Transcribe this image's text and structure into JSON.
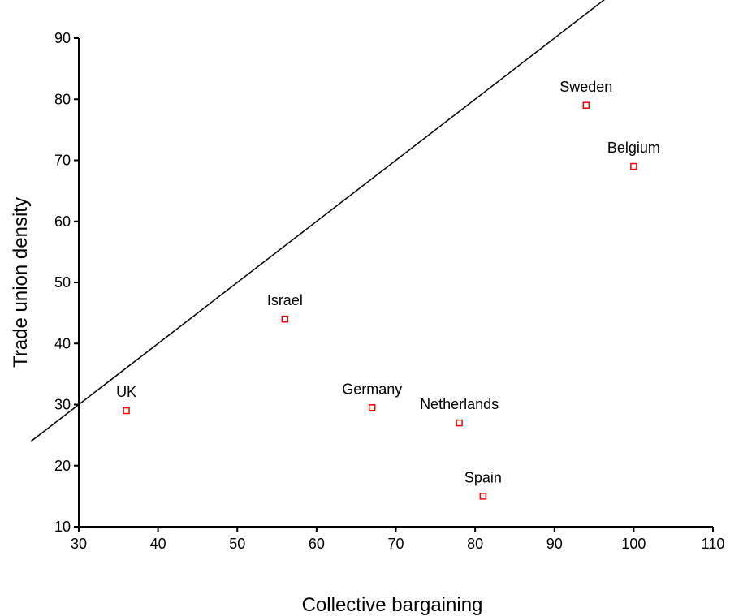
{
  "chart_data": {
    "type": "scatter",
    "title": "",
    "xlabel": "Collective bargaining",
    "ylabel": "Trade union density",
    "xlim": [
      30,
      110
    ],
    "ylim": [
      10,
      90
    ],
    "xticks": [
      30,
      40,
      50,
      60,
      70,
      80,
      90,
      100,
      110
    ],
    "yticks": [
      10,
      20,
      30,
      40,
      50,
      60,
      70,
      80,
      90
    ],
    "grid": false,
    "marker_color": "#ff0000",
    "line_color": "#000000",
    "points": [
      {
        "label": "UK",
        "x": 36,
        "y": 29
      },
      {
        "label": "Israel",
        "x": 56,
        "y": 44
      },
      {
        "label": "Germany",
        "x": 67,
        "y": 29.5
      },
      {
        "label": "Netherlands",
        "x": 78,
        "y": 27
      },
      {
        "label": "Spain",
        "x": 81,
        "y": 15
      },
      {
        "label": "Sweden",
        "x": 94,
        "y": 79
      },
      {
        "label": "Belgium",
        "x": 100,
        "y": 69
      }
    ],
    "reference_line": {
      "type": "y=x",
      "slope": 1,
      "intercept": 0
    }
  }
}
